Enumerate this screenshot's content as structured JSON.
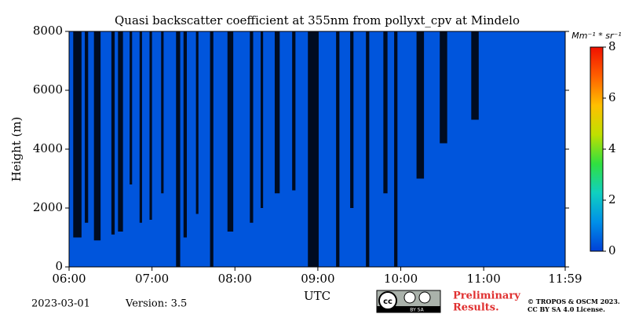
{
  "chart_data": {
    "type": "heatmap",
    "title": "Quasi backscatter coefficient at 355nm from pollyxt_cpv at Mindelo",
    "x_label": "UTC",
    "y_label": "Height (m)",
    "xlim": [
      6,
      11.983
    ],
    "xticks": [
      {
        "value": 6,
        "label": "06:00"
      },
      {
        "value": 7,
        "label": "07:00"
      },
      {
        "value": 8,
        "label": "08:00"
      },
      {
        "value": 9,
        "label": "09:00"
      },
      {
        "value": 10,
        "label": "10:00"
      },
      {
        "value": 11,
        "label": "11:00"
      },
      {
        "value": 11.983,
        "label": "11:59"
      }
    ],
    "ylim": [
      0,
      8000
    ],
    "yticks": [
      0,
      2000,
      4000,
      6000,
      8000
    ],
    "background_value": 0.3,
    "no_data_color": "#000000",
    "no_data_columns": [
      [
        6.05,
        6.15,
        1000
      ],
      [
        6.19,
        6.23,
        1500
      ],
      [
        6.3,
        6.38,
        900
      ],
      [
        6.51,
        6.55,
        1100
      ],
      [
        6.59,
        6.65,
        1200
      ],
      [
        6.73,
        6.76,
        2800
      ],
      [
        6.85,
        6.88,
        1500
      ],
      [
        6.97,
        7.0,
        1600
      ],
      [
        7.11,
        7.14,
        2500
      ],
      [
        7.29,
        7.34,
        0
      ],
      [
        7.38,
        7.42,
        1000
      ],
      [
        7.53,
        7.56,
        1800
      ],
      [
        7.7,
        7.74,
        0
      ],
      [
        7.91,
        7.98,
        1200
      ],
      [
        8.18,
        8.22,
        1500
      ],
      [
        8.31,
        8.34,
        2000
      ],
      [
        8.48,
        8.54,
        2500
      ],
      [
        8.69,
        8.73,
        2600
      ],
      [
        8.88,
        9.01,
        0
      ],
      [
        9.22,
        9.26,
        0
      ],
      [
        9.39,
        9.43,
        2000
      ],
      [
        9.58,
        9.62,
        0
      ],
      [
        9.79,
        9.84,
        2500
      ],
      [
        9.92,
        9.96,
        0
      ],
      [
        10.19,
        10.28,
        3000
      ],
      [
        10.47,
        10.56,
        4200
      ],
      [
        10.85,
        10.94,
        5000
      ]
    ],
    "colorbar": {
      "label": "Mm⁻¹ * sr⁻¹",
      "lim": [
        0,
        8
      ],
      "ticks": [
        0,
        2,
        4,
        6,
        8
      ],
      "colormap": [
        "#0040d8",
        "#0090e8",
        "#10d0c0",
        "#30e040",
        "#c0e000",
        "#ffc000",
        "#ff6000",
        "#f01000"
      ]
    },
    "footer": {
      "date": "2023-03-01",
      "version": "Version: 3.5",
      "badge": "BY SA",
      "preliminary": [
        "Preliminary",
        "Results."
      ],
      "copyright": [
        "© TROPOS & OSCM 2023.",
        "CC BY SA 4.0 License."
      ]
    }
  }
}
